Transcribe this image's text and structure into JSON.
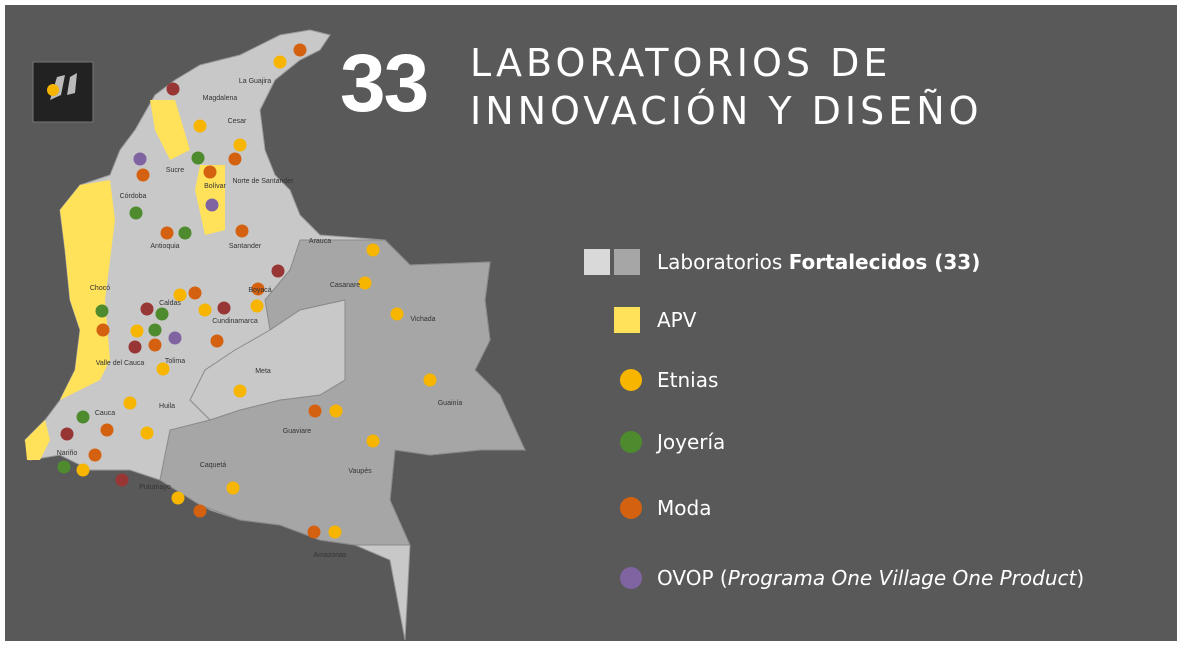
{
  "title": {
    "number": "33",
    "line1": "LABORATORIOS DE",
    "line2": "INNOVACIÓN Y DISEÑO"
  },
  "legend": [
    {
      "text": "Laboratorios ",
      "bold": "Fortalecidos (33)"
    },
    {
      "text": "APV"
    },
    {
      "text": "Etnias"
    },
    {
      "text": "Joyería"
    },
    {
      "text": "Moda"
    },
    {
      "text": "OVOP (",
      "italic": "Programa One Village One Product",
      "end": ")"
    }
  ],
  "departments": [
    "La Guajira",
    "Magdalena",
    "Cesar",
    "Sucre",
    "Bolívar",
    "Norte de Santander",
    "Córdoba",
    "Antioquia",
    "Santander",
    "Arauca",
    "Casanare",
    "Vichada",
    "Boyacá",
    "Chocó",
    "Caldas",
    "Cundinamarca",
    "Tolima",
    "Valle del Cauca",
    "Meta",
    "Guainía",
    "Huila",
    "Cauca",
    "Guaviare",
    "Nariño",
    "Caquetá",
    "Vaupés",
    "Putumayo",
    "Amazonas"
  ]
}
